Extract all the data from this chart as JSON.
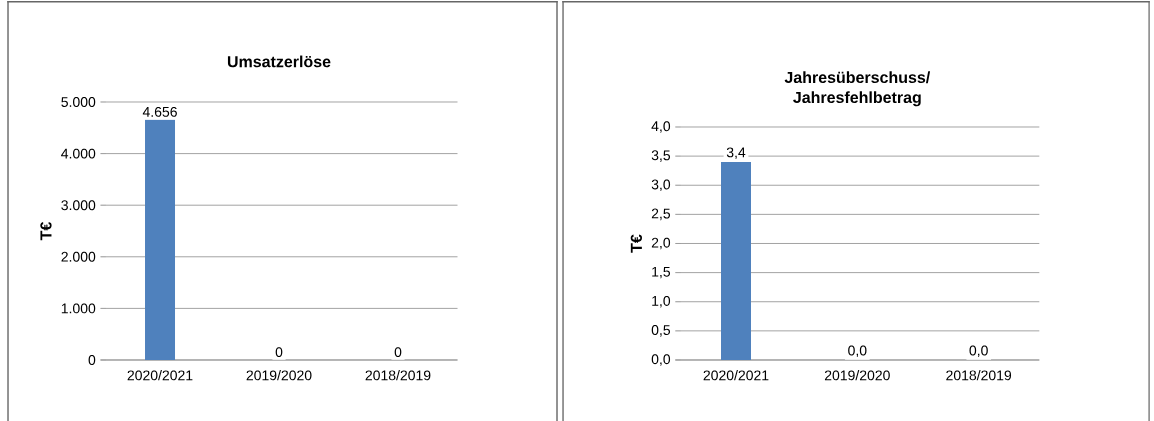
{
  "chart_data": [
    {
      "type": "bar",
      "title": "Umsatzerlöse",
      "ylabel": "T€",
      "categories": [
        "2020/2021",
        "2019/2020",
        "2018/2019"
      ],
      "values": [
        4656,
        0,
        0
      ],
      "value_labels": [
        "4.656",
        "0",
        "0"
      ],
      "color": "#4f81bd",
      "ylim": [
        0,
        5000
      ],
      "yticks": [
        0,
        {
          "value": 1000,
          "label": "1.000"
        },
        {
          "value": 2000,
          "label": "2.000"
        },
        {
          "value": 3000,
          "label": "3.000"
        },
        {
          "value": 4000,
          "label": "4.000"
        },
        {
          "value": 5000,
          "label": "5.000"
        }
      ],
      "grid": "y"
    },
    {
      "type": "bar",
      "title": "Jahresüberschuss/ Jahresfehlbetrag",
      "ylabel": "T€",
      "categories": [
        "2020/2021",
        "2019/2020",
        "2018/2019"
      ],
      "values": [
        3.4,
        0,
        0
      ],
      "value_labels": [
        "3,4",
        "0,0",
        "0,0"
      ],
      "color": "#4f81bd",
      "ylim": [
        0,
        4
      ],
      "yticks": [
        {
          "value": 0,
          "label": "0,0"
        },
        {
          "value": 0.5,
          "label": "0,5"
        },
        {
          "value": 1,
          "label": "1,0"
        },
        {
          "value": 1.5,
          "label": "1,5"
        },
        {
          "value": 2,
          "label": "2,0"
        },
        {
          "value": 2.5,
          "label": "2,5"
        },
        {
          "value": 3,
          "label": "3,0"
        },
        {
          "value": 3.5,
          "label": "3,5"
        },
        {
          "value": 4,
          "label": "4,0"
        }
      ],
      "grid": "y"
    }
  ]
}
